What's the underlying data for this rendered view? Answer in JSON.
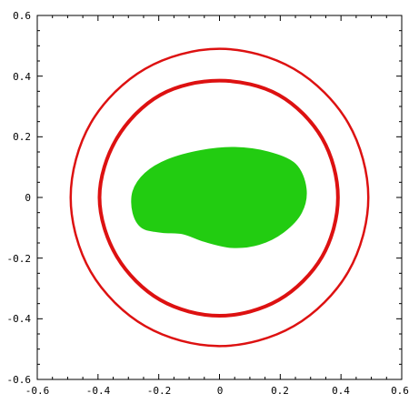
{
  "chart_data": {
    "type": "scatter",
    "title": "",
    "xlabel": "",
    "ylabel": "",
    "xlim": [
      -0.6,
      0.6
    ],
    "ylim": [
      -0.6,
      0.6
    ],
    "x_ticks": [
      "-0.6",
      "-0.4",
      "-0.2",
      "0",
      "0.2",
      "0.4",
      "0.6"
    ],
    "y_ticks": [
      "0.6",
      "0.4",
      "0.2",
      "0",
      "-0.2",
      "-0.4",
      "-0.6"
    ],
    "grid": false,
    "legend": "none",
    "series": [
      {
        "kind": "closed-curve",
        "color": "#dd1111",
        "points": [
          [
            0.49,
            0.0
          ],
          [
            0.424,
            0.245
          ],
          [
            0.245,
            0.424
          ],
          [
            0.0,
            0.49
          ],
          [
            -0.245,
            0.424
          ],
          [
            -0.424,
            0.245
          ],
          [
            -0.49,
            0.0
          ],
          [
            -0.424,
            -0.245
          ],
          [
            -0.245,
            -0.424
          ],
          [
            0.0,
            -0.49
          ],
          [
            0.245,
            -0.424
          ],
          [
            0.424,
            -0.245
          ]
        ]
      },
      {
        "kind": "closed-curve",
        "color": "#dd1111",
        "points": [
          [
            0.39,
            0.0
          ],
          [
            0.338,
            0.195
          ],
          [
            0.195,
            0.338
          ],
          [
            0.0,
            0.385
          ],
          [
            -0.195,
            0.338
          ],
          [
            -0.338,
            0.195
          ],
          [
            -0.395,
            0.0
          ],
          [
            -0.338,
            -0.195
          ],
          [
            -0.195,
            -0.338
          ],
          [
            0.0,
            -0.39
          ],
          [
            0.195,
            -0.338
          ],
          [
            0.338,
            -0.195
          ]
        ]
      },
      {
        "kind": "filled-region",
        "color": "#22cc11",
        "points": [
          [
            0.285,
            0.03
          ],
          [
            0.25,
            0.11
          ],
          [
            0.16,
            0.15
          ],
          [
            0.05,
            0.165
          ],
          [
            -0.06,
            0.155
          ],
          [
            -0.17,
            0.125
          ],
          [
            -0.245,
            0.08
          ],
          [
            -0.285,
            0.02
          ],
          [
            -0.285,
            -0.05
          ],
          [
            -0.255,
            -0.1
          ],
          [
            -0.19,
            -0.115
          ],
          [
            -0.12,
            -0.12
          ],
          [
            -0.05,
            -0.145
          ],
          [
            0.04,
            -0.165
          ],
          [
            0.13,
            -0.155
          ],
          [
            0.21,
            -0.115
          ],
          [
            0.27,
            -0.05
          ]
        ]
      }
    ]
  }
}
